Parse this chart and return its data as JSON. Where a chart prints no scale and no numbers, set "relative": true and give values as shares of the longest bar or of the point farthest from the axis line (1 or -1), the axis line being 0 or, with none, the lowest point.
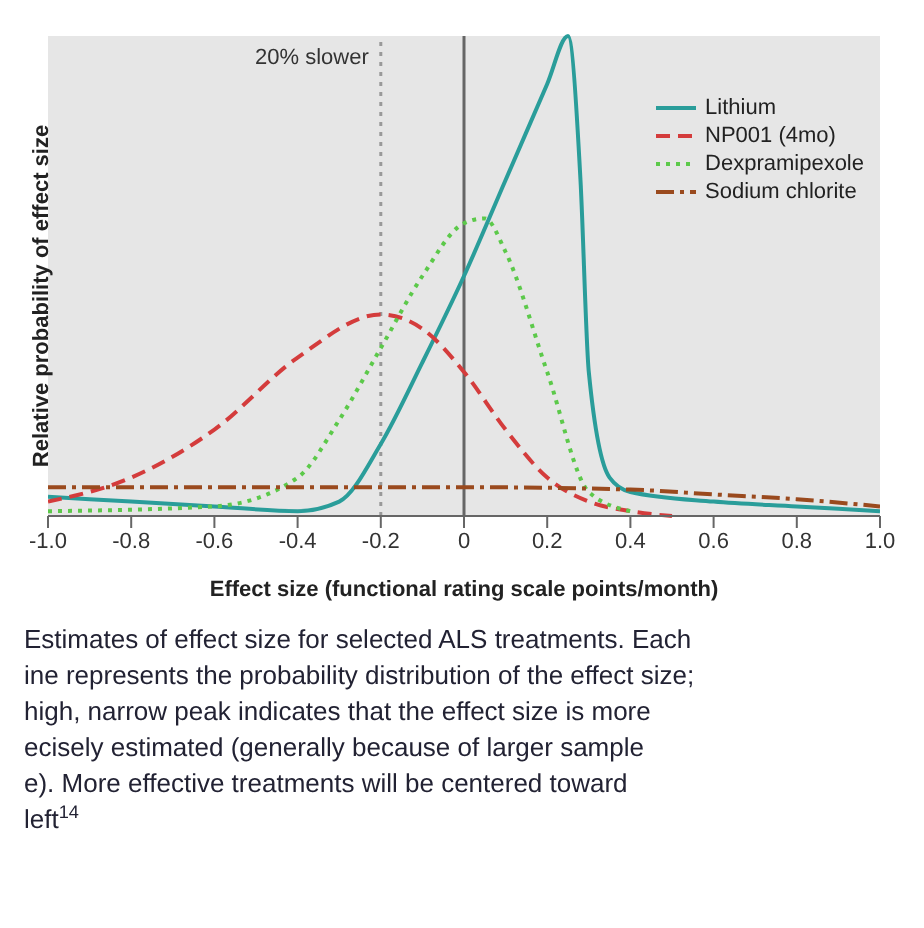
{
  "chart_data": {
    "type": "line",
    "relative": true,
    "xlabel": "Effect size (functional rating scale points/month)",
    "ylabel": "Relative probability of effect size",
    "xlim": [
      -1,
      1
    ],
    "xticks": [
      {
        "value": -1,
        "label": "-1.0"
      },
      -0.8,
      -0.6,
      -0.4,
      -0.2,
      0,
      0.2,
      0.4,
      0.6,
      0.8,
      {
        "value": 1,
        "label": "1.0"
      }
    ],
    "legend": "top right",
    "grid": false,
    "series": [
      {
        "name": "Lithium",
        "color": "#2a9d9a",
        "line_style": "solid",
        "x": [
          -1,
          -0.8,
          -0.6,
          -0.4,
          -0.3,
          -0.2,
          -0.1,
          0,
          0.1,
          0.2,
          0.25,
          0.28,
          0.3,
          0.35,
          0.4,
          0.6,
          0.8,
          1.0
        ],
        "values": [
          0.04,
          0.03,
          0.02,
          0.01,
          0.03,
          0.15,
          0.32,
          0.5,
          0.7,
          0.9,
          1.0,
          0.7,
          0.3,
          0.08,
          0.05,
          0.03,
          0.02,
          0.01
        ]
      },
      {
        "name": "NP001 (4mo)",
        "color": "#d43c3c",
        "line_style": "dashed",
        "x": [
          -1,
          -0.8,
          -0.6,
          -0.4,
          -0.2,
          -0.1,
          0,
          0.1,
          0.2,
          0.3,
          0.4,
          0.5
        ],
        "values": [
          0.03,
          0.08,
          0.18,
          0.33,
          0.42,
          0.39,
          0.3,
          0.18,
          0.08,
          0.03,
          0.01,
          0
        ]
      },
      {
        "name": "Dexpramipexole",
        "color": "#5cc94a",
        "line_style": "dotted",
        "x": [
          -1,
          -0.6,
          -0.4,
          -0.3,
          -0.2,
          -0.1,
          0,
          0.05,
          0.1,
          0.2,
          0.3,
          0.4
        ],
        "values": [
          0.01,
          0.02,
          0.08,
          0.2,
          0.35,
          0.5,
          0.61,
          0.62,
          0.55,
          0.3,
          0.05,
          0.01
        ]
      },
      {
        "name": "Sodium chlorite",
        "color": "#9a4a1e",
        "line_style": "dashdot",
        "x": [
          -1,
          -0.5,
          0,
          0.4,
          0.6,
          0.8,
          1.0
        ],
        "values": [
          0.06,
          0.06,
          0.06,
          0.055,
          0.045,
          0.035,
          0.02
        ]
      }
    ],
    "ref_lines": [
      {
        "axis": "x",
        "value": -0.2,
        "label": "20% slower",
        "line_style": "dotted",
        "color": "#999999"
      },
      {
        "axis": "x",
        "value": 0,
        "label": null,
        "line_style": "solid",
        "color": "#666666"
      }
    ],
    "annotations": [
      "Estimates of effect size for selected ALS treatments. Each",
      "ine represents the probability distribution of the effect size;",
      "high, narrow peak indicates that the effect size is more",
      "ecisely estimated (generally because of larger sample",
      "e). More effective treatments will be centered toward",
      "left$^{14}$"
    ]
  }
}
